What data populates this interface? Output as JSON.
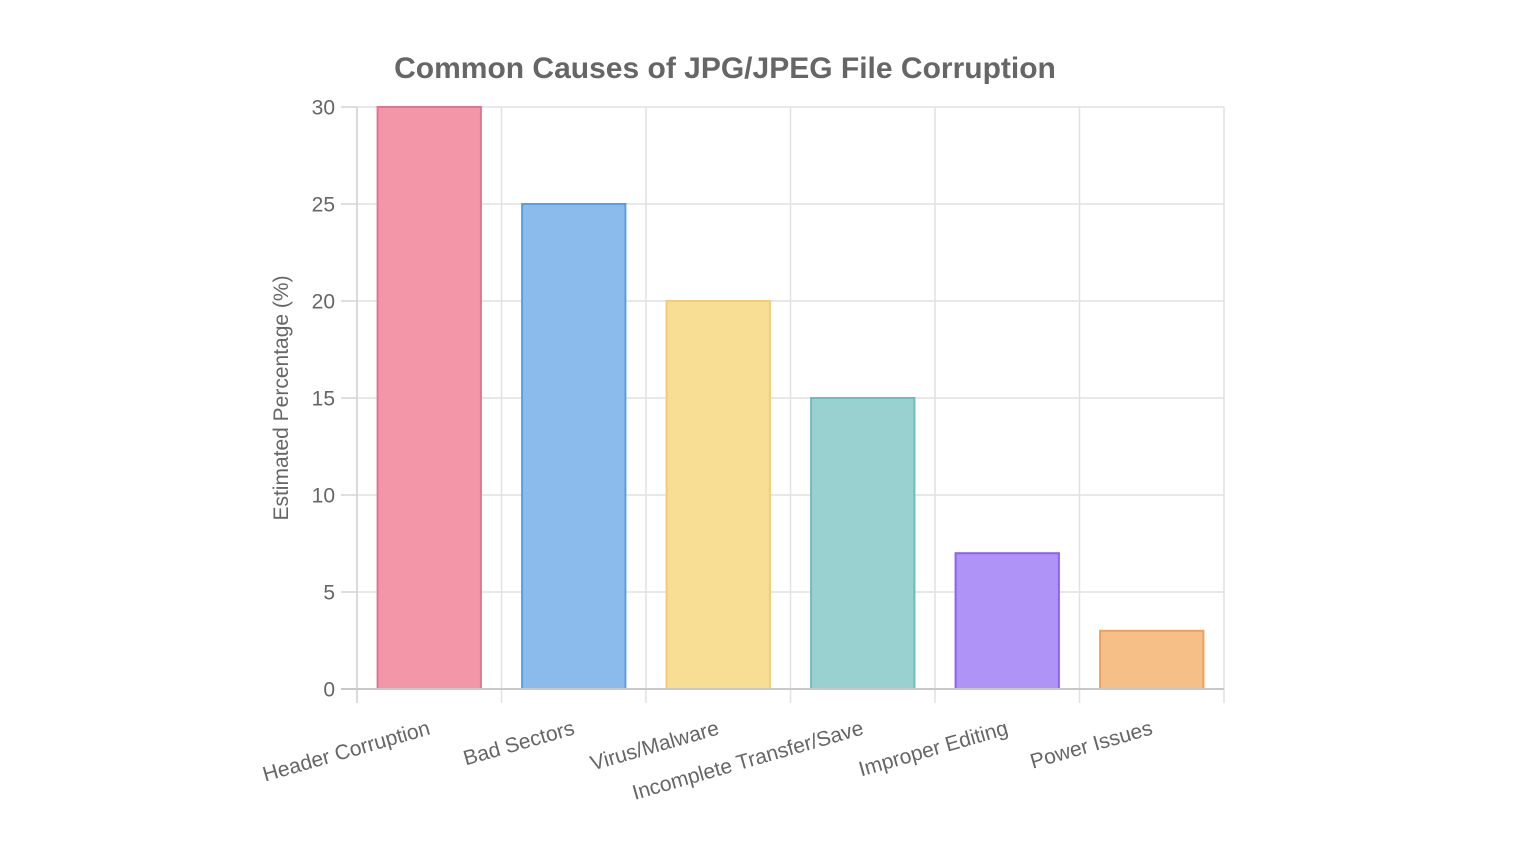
{
  "chart_data": {
    "type": "bar",
    "title": "Common Causes of JPG/JPEG File Corruption",
    "xlabel": "",
    "ylabel": "Estimated Percentage (%)",
    "categories": [
      "Header Corruption",
      "Bad Sectors",
      "Virus/Malware",
      "Incomplete Transfer/Save",
      "Improper Editing",
      "Power Issues"
    ],
    "values": [
      30,
      25,
      20,
      15,
      7,
      3
    ],
    "ylim": [
      0,
      30
    ],
    "yticks": [
      0,
      5,
      10,
      15,
      20,
      25,
      30
    ],
    "grid": true,
    "legend": "none",
    "bar_fill_colors": [
      "#f396a8",
      "#8bbaec",
      "#f8dd95",
      "#99d1d1",
      "#b093f7",
      "#f6bf88"
    ],
    "bar_border_colors": [
      "#e0768e",
      "#5a9ee0",
      "#f2cd72",
      "#6ebdbd",
      "#8c63f0",
      "#f0a05c"
    ]
  }
}
